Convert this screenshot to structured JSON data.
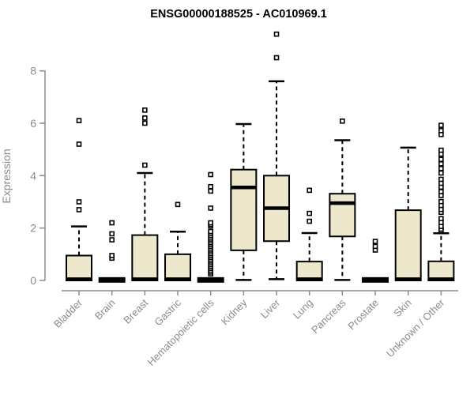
{
  "chart_data": {
    "type": "boxplot",
    "title": "ENSG00000188525 - AC010969.1",
    "ylabel": "Expression",
    "xlabel": "",
    "yticks": [
      0,
      2,
      4,
      6,
      8
    ],
    "ytick_labels": [
      "0",
      "2",
      "4",
      "6",
      "8"
    ],
    "ylim": [
      0,
      9.6
    ],
    "grid": false,
    "legend": "none",
    "colors": {
      "box_fill": "#EDE8CB",
      "box_stroke": "#000000",
      "median": "#000000",
      "whisker": "#000000",
      "axis": "#8c8c8c",
      "tick_label": "#8c8c8c",
      "title": "#000000",
      "outlier_fill": "#ffffff",
      "outlier_stroke": "#000000",
      "background": "#ffffff"
    },
    "categories": [
      "Bladder",
      "Brain",
      "Breast",
      "Gastric",
      "Hematopoietic cells",
      "Kidney",
      "Liver",
      "Lung",
      "Pancreas",
      "Prostate",
      "Skin",
      "Unknown / Other"
    ],
    "series": [
      {
        "name": "Bladder",
        "q1": 0,
        "median": 0.05,
        "q3": 0.95,
        "whisker_low": 0,
        "whisker_high": 2.06,
        "outliers": [
          2.7,
          3.0,
          5.2,
          6.1
        ]
      },
      {
        "name": "Brain",
        "q1": 0,
        "median": 0.02,
        "q3": 0.05,
        "whisker_low": 0,
        "whisker_high": 0.05,
        "outliers": [
          0.85,
          0.95,
          1.55,
          1.78,
          2.2
        ]
      },
      {
        "name": "Breast",
        "q1": 0,
        "median": 0.05,
        "q3": 1.73,
        "whisker_low": 0,
        "whisker_high": 4.1,
        "outliers": [
          4.4,
          6.0,
          6.2,
          6.5
        ]
      },
      {
        "name": "Gastric",
        "q1": 0,
        "median": 0.05,
        "q3": 1.0,
        "whisker_low": 0,
        "whisker_high": 1.86,
        "outliers": [
          2.9
        ]
      },
      {
        "name": "Hematopoietic cells",
        "q1": 0,
        "median": 0.02,
        "q3": 0.05,
        "whisker_low": 0,
        "whisker_high": 0.05,
        "outliers": [
          0.25,
          0.32,
          0.39,
          0.46,
          0.53,
          0.6,
          0.67,
          0.74,
          0.81,
          0.88,
          0.95,
          1.02,
          1.09,
          1.16,
          1.23,
          1.3,
          1.37,
          1.44,
          1.51,
          1.58,
          1.65,
          1.72,
          1.8,
          1.87,
          2.08,
          2.14,
          2.2,
          2.76,
          3.41,
          3.58,
          4.04
        ]
      },
      {
        "name": "Kidney",
        "q1": 1.15,
        "median": 3.55,
        "q3": 4.23,
        "whisker_low": 0.02,
        "whisker_high": 5.97,
        "outliers": []
      },
      {
        "name": "Liver",
        "q1": 1.5,
        "median": 2.76,
        "q3": 4.0,
        "whisker_low": 0.05,
        "whisker_high": 7.6,
        "outliers": [
          8.5,
          9.4
        ]
      },
      {
        "name": "Lung",
        "q1": 0,
        "median": 0.05,
        "q3": 0.72,
        "whisker_low": 0,
        "whisker_high": 1.81,
        "outliers": [
          2.26,
          2.56,
          3.44
        ]
      },
      {
        "name": "Pancreas",
        "q1": 1.68,
        "median": 2.95,
        "q3": 3.31,
        "whisker_low": 0.02,
        "whisker_high": 5.35,
        "outliers": [
          6.08
        ]
      },
      {
        "name": "Prostate",
        "q1": 0,
        "median": 0.02,
        "q3": 0.05,
        "whisker_low": 0,
        "whisker_high": 0.05,
        "outliers": [
          1.16,
          1.3,
          1.49
        ]
      },
      {
        "name": "Skin",
        "q1": 0,
        "median": 0.05,
        "q3": 2.68,
        "whisker_low": 0,
        "whisker_high": 5.07,
        "outliers": []
      },
      {
        "name": "Unknown / Other",
        "q1": 0,
        "median": 0.05,
        "q3": 0.73,
        "whisker_low": 0,
        "whisker_high": 1.8,
        "outliers": [
          1.9,
          1.96,
          2.06,
          2.21,
          2.36,
          2.6,
          2.71,
          2.86,
          3.01,
          3.24,
          3.39,
          3.56,
          3.71,
          3.86,
          4.1,
          4.27,
          4.45,
          4.62,
          4.82,
          4.97,
          5.57,
          5.72,
          5.92
        ]
      }
    ]
  }
}
